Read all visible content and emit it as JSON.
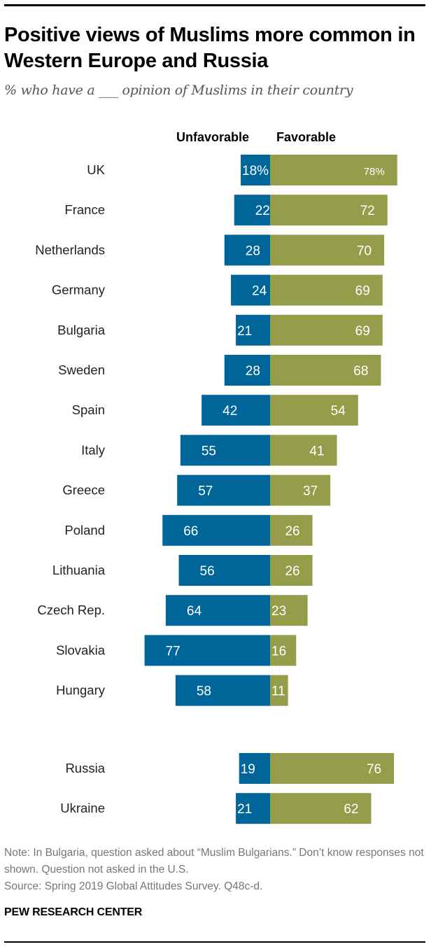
{
  "title": "Positive views of Muslims more common in Western Europe and Russia",
  "subtitle": "% who have a ___ opinion of Muslims in their country",
  "notes": [
    "Note: In Bulgaria, question asked about “Muslim Bulgarians.” Don’t know responses not shown. Question not asked in the U.S.",
    "Source: Spring 2019 Global Attitudes Survey. Q48c-d."
  ],
  "brand": "PEW RESEARCH CENTER",
  "colors": {
    "unfavorable": "#006699",
    "favorable": "#959d4a"
  },
  "chart_data": {
    "type": "bar",
    "orientation": "horizontal-diverging",
    "title": "Positive views of Muslims more common in Western Europe and Russia",
    "subtitle": "% who have a ___ opinion of Muslims in their country",
    "xlabel": "",
    "ylabel": "",
    "xlim": [
      0,
      100
    ],
    "unit": "%",
    "series_labels": {
      "unfavorable": "Unfavorable",
      "favorable": "Favorable"
    },
    "groups": [
      {
        "categories": [
          "UK",
          "France",
          "Netherlands",
          "Germany",
          "Bulgaria",
          "Sweden",
          "Spain",
          "Italy",
          "Greece",
          "Poland",
          "Lithuania",
          "Czech Rep.",
          "Slovakia",
          "Hungary"
        ],
        "series": [
          {
            "name": "Unfavorable",
            "values": [
              18,
              22,
              28,
              24,
              21,
              28,
              42,
              55,
              57,
              66,
              56,
              64,
              77,
              58
            ]
          },
          {
            "name": "Favorable",
            "values": [
              78,
              72,
              70,
              69,
              69,
              68,
              54,
              41,
              37,
              26,
              26,
              23,
              16,
              11
            ]
          }
        ]
      },
      {
        "categories": [
          "Russia",
          "Ukraine"
        ],
        "series": [
          {
            "name": "Unfavorable",
            "values": [
              19,
              21
            ]
          },
          {
            "name": "Favorable",
            "values": [
              76,
              62
            ]
          }
        ]
      }
    ],
    "first_row_suffix": "%"
  }
}
